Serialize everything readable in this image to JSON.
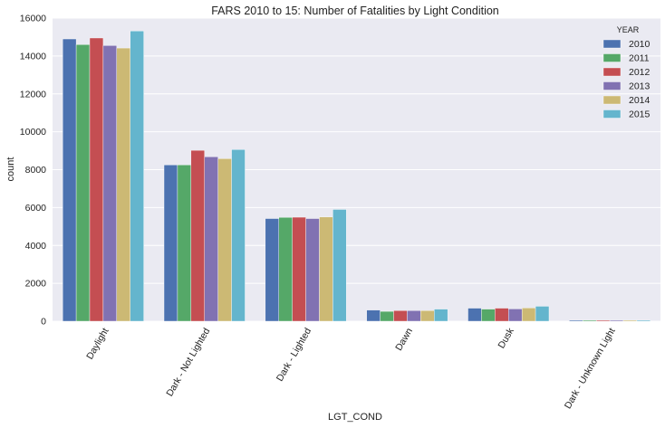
{
  "chart_data": {
    "type": "bar",
    "title": "FARS 2010 to 15: Number of Fatalities by Light Condition",
    "xlabel": "LGT_COND",
    "ylabel": "count",
    "ylim": [
      0,
      16000
    ],
    "yticks": [
      0,
      2000,
      4000,
      6000,
      8000,
      10000,
      12000,
      14000,
      16000
    ],
    "grid": true,
    "legend_title": "YEAR",
    "legend_position": "top-right",
    "categories": [
      "Daylight",
      "Dark - Not Lighted",
      "Dark - Lighted",
      "Dawn",
      "Dusk",
      "Dark - Unknown Light"
    ],
    "series": [
      {
        "name": "2010",
        "color": "#4c72b0",
        "values": [
          14900,
          8250,
          5420,
          590,
          690,
          50
        ]
      },
      {
        "name": "2011",
        "color": "#55a868",
        "values": [
          14600,
          8250,
          5480,
          520,
          640,
          50
        ]
      },
      {
        "name": "2012",
        "color": "#c44e52",
        "values": [
          14950,
          9020,
          5490,
          560,
          690,
          50
        ]
      },
      {
        "name": "2013",
        "color": "#8172b2",
        "values": [
          14550,
          8680,
          5420,
          560,
          650,
          50
        ]
      },
      {
        "name": "2014",
        "color": "#ccb974",
        "values": [
          14420,
          8580,
          5500,
          560,
          700,
          50
        ]
      },
      {
        "name": "2015",
        "color": "#64b5cd",
        "values": [
          15320,
          9060,
          5900,
          640,
          790,
          50
        ]
      }
    ]
  }
}
